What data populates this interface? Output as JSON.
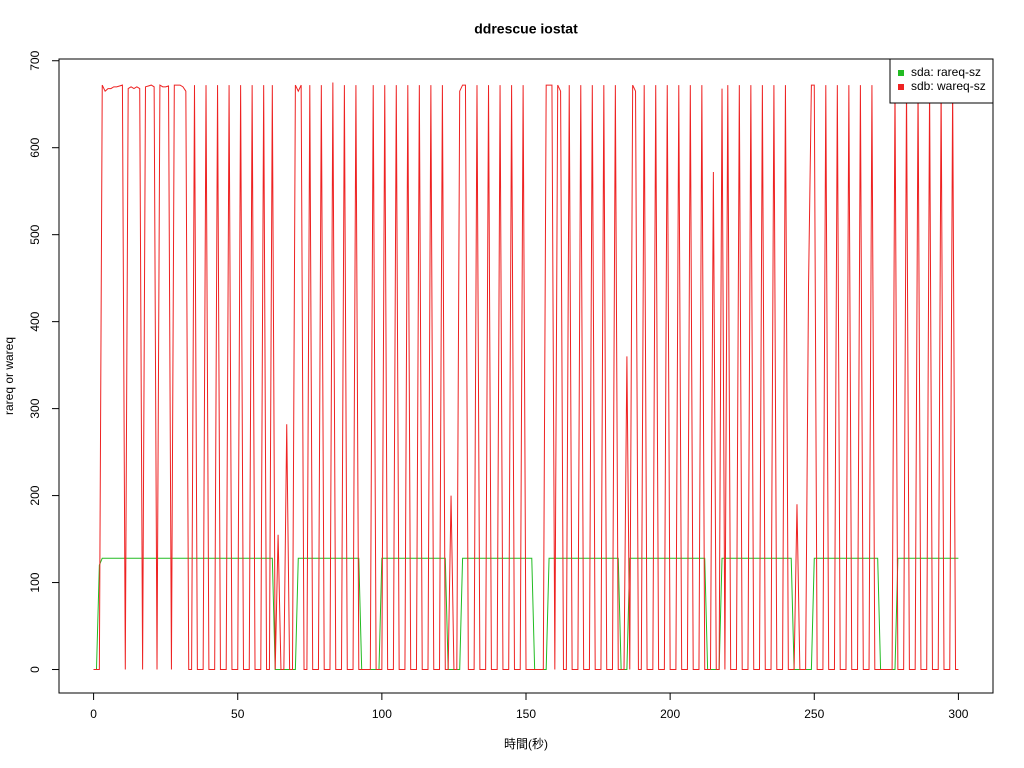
{
  "chart_data": {
    "type": "line",
    "title": "ddrescue iostat",
    "xlabel": "時間(秒)",
    "ylabel": "rareq or wareq",
    "legend": "topright",
    "xlim": [
      -12,
      312
    ],
    "xticks": [
      0,
      50,
      100,
      150,
      200,
      250,
      300
    ],
    "ylim": [
      -27,
      702
    ],
    "yticks": [
      0,
      100,
      200,
      300,
      400,
      500,
      600,
      700
    ],
    "x": [
      0,
      1,
      2,
      3,
      4,
      5,
      6,
      7,
      8,
      9,
      10,
      11,
      12,
      13,
      14,
      15,
      16,
      17,
      18,
      19,
      20,
      21,
      22,
      23,
      24,
      25,
      26,
      27,
      28,
      29,
      30,
      31,
      32,
      33,
      34,
      35,
      36,
      37,
      38,
      39,
      40,
      41,
      42,
      43,
      44,
      45,
      46,
      47,
      48,
      49,
      50,
      51,
      52,
      53,
      54,
      55,
      56,
      57,
      58,
      59,
      60,
      61,
      62,
      63,
      64,
      65,
      66,
      67,
      68,
      69,
      70,
      71,
      72,
      73,
      74,
      75,
      76,
      77,
      78,
      79,
      80,
      81,
      82,
      83,
      84,
      85,
      86,
      87,
      88,
      89,
      90,
      91,
      92,
      93,
      94,
      95,
      96,
      97,
      98,
      99,
      100,
      101,
      102,
      103,
      104,
      105,
      106,
      107,
      108,
      109,
      110,
      111,
      112,
      113,
      114,
      115,
      116,
      117,
      118,
      119,
      120,
      121,
      122,
      123,
      124,
      125,
      126,
      127,
      128,
      129,
      130,
      131,
      132,
      133,
      134,
      135,
      136,
      137,
      138,
      139,
      140,
      141,
      142,
      143,
      144,
      145,
      146,
      147,
      148,
      149,
      150,
      151,
      152,
      153,
      154,
      155,
      156,
      157,
      158,
      159,
      160,
      161,
      162,
      163,
      164,
      165,
      166,
      167,
      168,
      169,
      170,
      171,
      172,
      173,
      174,
      175,
      176,
      177,
      178,
      179,
      180,
      181,
      182,
      183,
      184,
      185,
      186,
      187,
      188,
      189,
      190,
      191,
      192,
      193,
      194,
      195,
      196,
      197,
      198,
      199,
      200,
      201,
      202,
      203,
      204,
      205,
      206,
      207,
      208,
      209,
      210,
      211,
      212,
      213,
      214,
      215,
      216,
      217,
      218,
      219,
      220,
      221,
      222,
      223,
      224,
      225,
      226,
      227,
      228,
      229,
      230,
      231,
      232,
      233,
      234,
      235,
      236,
      237,
      238,
      239,
      240,
      241,
      242,
      243,
      244,
      245,
      246,
      247,
      248,
      249,
      250,
      251,
      252,
      253,
      254,
      255,
      256,
      257,
      258,
      259,
      260,
      261,
      262,
      263,
      264,
      265,
      266,
      267,
      268,
      269,
      270,
      271,
      272,
      273,
      274,
      275,
      276,
      277,
      278,
      279,
      280,
      281,
      282,
      283,
      284,
      285,
      286,
      287,
      288,
      289,
      290,
      291,
      292,
      293,
      294,
      295,
      296,
      297,
      298,
      299,
      300
    ],
    "series": [
      {
        "name": "sda: rareq-sz",
        "color": "#22bb22",
        "values": [
          0,
          0,
          120,
          128,
          128,
          128,
          128,
          128,
          128,
          128,
          128,
          128,
          128,
          128,
          128,
          128,
          128,
          128,
          128,
          128,
          128,
          128,
          128,
          128,
          128,
          128,
          128,
          128,
          128,
          128,
          128,
          128,
          128,
          128,
          128,
          128,
          128,
          128,
          128,
          128,
          128,
          128,
          128,
          128,
          128,
          128,
          128,
          128,
          128,
          128,
          128,
          128,
          128,
          128,
          128,
          128,
          128,
          128,
          128,
          128,
          128,
          128,
          128,
          0,
          0,
          0,
          0,
          0,
          0,
          0,
          0,
          128,
          128,
          128,
          128,
          128,
          128,
          128,
          128,
          128,
          128,
          128,
          128,
          128,
          128,
          128,
          128,
          128,
          128,
          128,
          128,
          128,
          128,
          0,
          0,
          0,
          0,
          0,
          0,
          0,
          128,
          128,
          128,
          128,
          128,
          128,
          128,
          128,
          128,
          128,
          128,
          128,
          128,
          128,
          128,
          128,
          128,
          128,
          128,
          128,
          128,
          128,
          128,
          0,
          0,
          0,
          0,
          0,
          128,
          128,
          128,
          128,
          128,
          128,
          128,
          128,
          128,
          128,
          128,
          128,
          128,
          128,
          128,
          128,
          128,
          128,
          128,
          128,
          128,
          128,
          128,
          128,
          128,
          0,
          0,
          0,
          0,
          0,
          128,
          128,
          128,
          128,
          128,
          128,
          128,
          128,
          128,
          128,
          128,
          128,
          128,
          128,
          128,
          128,
          128,
          128,
          128,
          128,
          128,
          128,
          128,
          128,
          128,
          0,
          0,
          0,
          128,
          128,
          128,
          128,
          128,
          128,
          128,
          128,
          128,
          128,
          128,
          128,
          128,
          128,
          128,
          128,
          128,
          128,
          128,
          128,
          128,
          128,
          128,
          128,
          128,
          128,
          128,
          0,
          0,
          0,
          0,
          0,
          128,
          128,
          128,
          128,
          128,
          128,
          128,
          128,
          128,
          128,
          128,
          128,
          128,
          128,
          128,
          128,
          128,
          128,
          128,
          128,
          128,
          128,
          128,
          128,
          128,
          0,
          0,
          0,
          0,
          0,
          0,
          0,
          128,
          128,
          128,
          128,
          128,
          128,
          128,
          128,
          128,
          128,
          128,
          128,
          128,
          128,
          128,
          128,
          128,
          128,
          128,
          128,
          128,
          128,
          128,
          0,
          0,
          0,
          0,
          0,
          0,
          128,
          128,
          128,
          128,
          128,
          128,
          128,
          128,
          128,
          128,
          128,
          128,
          128,
          128,
          128,
          128,
          128,
          128,
          128,
          128,
          128,
          128
        ]
      },
      {
        "name": "sdb: wareq-sz",
        "color": "#ee2222",
        "values": [
          0,
          0,
          0,
          672,
          665,
          668,
          668,
          670,
          670,
          671,
          672,
          0,
          668,
          670,
          668,
          670,
          668,
          0,
          670,
          671,
          672,
          670,
          0,
          672,
          670,
          670,
          671,
          0,
          672,
          672,
          672,
          670,
          665,
          0,
          0,
          672,
          0,
          0,
          0,
          672,
          0,
          0,
          0,
          672,
          0,
          0,
          0,
          672,
          0,
          0,
          0,
          672,
          0,
          0,
          0,
          672,
          0,
          0,
          0,
          672,
          0,
          0,
          672,
          0,
          155,
          0,
          0,
          282,
          0,
          0,
          672,
          665,
          672,
          0,
          0,
          672,
          0,
          0,
          0,
          672,
          0,
          0,
          0,
          675,
          0,
          0,
          0,
          672,
          0,
          0,
          0,
          672,
          0,
          0,
          0,
          0,
          0,
          672,
          0,
          0,
          0,
          672,
          0,
          0,
          0,
          672,
          0,
          0,
          0,
          672,
          0,
          0,
          0,
          672,
          0,
          0,
          0,
          672,
          0,
          0,
          0,
          672,
          0,
          0,
          200,
          0,
          0,
          665,
          672,
          672,
          0,
          0,
          0,
          672,
          0,
          0,
          0,
          672,
          0,
          0,
          0,
          672,
          0,
          0,
          0,
          672,
          0,
          0,
          0,
          672,
          0,
          0,
          0,
          0,
          0,
          0,
          0,
          672,
          672,
          672,
          0,
          672,
          665,
          0,
          0,
          672,
          0,
          0,
          0,
          672,
          0,
          0,
          0,
          672,
          0,
          0,
          0,
          672,
          0,
          0,
          0,
          672,
          0,
          0,
          0,
          360,
          0,
          672,
          665,
          0,
          0,
          672,
          0,
          0,
          0,
          672,
          0,
          0,
          0,
          672,
          0,
          0,
          0,
          672,
          0,
          0,
          0,
          672,
          0,
          0,
          0,
          672,
          0,
          0,
          0,
          572,
          0,
          0,
          668,
          0,
          672,
          0,
          0,
          0,
          672,
          0,
          0,
          0,
          672,
          0,
          0,
          0,
          672,
          0,
          0,
          0,
          672,
          0,
          0,
          0,
          672,
          0,
          0,
          0,
          190,
          0,
          0,
          0,
          440,
          672,
          672,
          0,
          0,
          0,
          672,
          0,
          0,
          0,
          672,
          0,
          0,
          0,
          672,
          0,
          0,
          0,
          672,
          0,
          0,
          0,
          672,
          0,
          0,
          0,
          0,
          0,
          0,
          0,
          672,
          0,
          0,
          0,
          672,
          0,
          0,
          0,
          672,
          0,
          0,
          0,
          672,
          0,
          0,
          0,
          672,
          0,
          0,
          0,
          672,
          0,
          0
        ]
      }
    ]
  }
}
